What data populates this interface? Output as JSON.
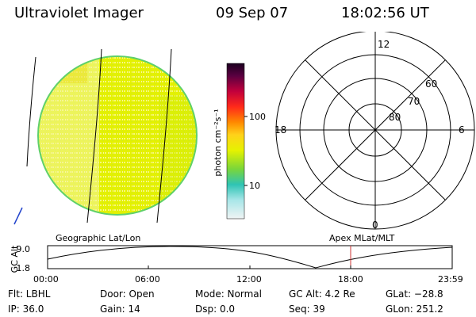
{
  "header": {
    "title": "Ultraviolet Imager",
    "date": "09 Sep 07",
    "time": "18:02:56 UT"
  },
  "colorbar": {
    "unit_label": "photon cm⁻²s⁻¹",
    "tick_100": "100",
    "tick_10": "10"
  },
  "polar": {
    "label_top": "12",
    "label_left": "18",
    "label_right": "6",
    "label_bottom": "0",
    "ring_60": "60",
    "ring_70": "70",
    "ring_80": "80"
  },
  "timeline": {
    "label_geo": "Geographic Lat/Lon",
    "label_apex": "Apex  MLat/MLT",
    "axis_title": "GC Alt",
    "y_max": "9.0",
    "y_min": "1.8",
    "times": [
      "00:00",
      "06:00",
      "12:00",
      "18:00",
      "23:59"
    ]
  },
  "info": {
    "flt": "Flt: LBHL",
    "door": "Door: Open",
    "mode": "Mode: Normal",
    "gc_alt": "GC Alt: 4.2 Re",
    "glat": "GLat: −28.8",
    "ip": "IP: 36.0",
    "gain": "Gain: 14",
    "dsp": "Dsp:     0.0",
    "seq": "Seq: 39",
    "glon": "GLon: 251.2"
  },
  "colors": {
    "disk": "#e6f200",
    "disk_edge": "#5fd06a",
    "marker": "#cc3333",
    "blue_mark": "#2244cc"
  }
}
